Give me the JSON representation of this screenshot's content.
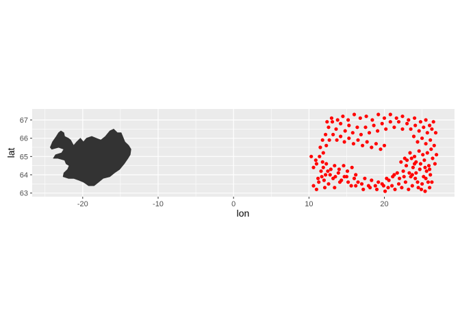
{
  "chart_data": {
    "type": "scatter",
    "title": "",
    "xlabel": "lon",
    "ylabel": "lat",
    "xlim": [
      -26.7,
      29.3
    ],
    "ylim": [
      62.8,
      67.6
    ],
    "x_ticks": [
      -20,
      -10,
      0,
      10,
      20
    ],
    "x_tick_labels": [
      "-20",
      "-10",
      "0",
      "10",
      "20"
    ],
    "y_ticks": [
      63,
      64,
      65,
      66,
      67
    ],
    "y_tick_labels": [
      "63",
      "64",
      "65",
      "66",
      "67"
    ],
    "grid": true,
    "panel_color": "#ebebeb",
    "map_polygon": {
      "name": "Iceland outline",
      "fill": "#333333",
      "outline": [
        [
          -24.3,
          65.5
        ],
        [
          -24.0,
          65.8
        ],
        [
          -23.5,
          66.1
        ],
        [
          -23.2,
          66.3
        ],
        [
          -22.9,
          66.4
        ],
        [
          -22.5,
          66.3
        ],
        [
          -22.4,
          66.1
        ],
        [
          -21.9,
          66.0
        ],
        [
          -21.6,
          65.9
        ],
        [
          -21.2,
          65.6
        ],
        [
          -20.8,
          65.8
        ],
        [
          -20.3,
          66.0
        ],
        [
          -19.9,
          65.8
        ],
        [
          -19.5,
          66.0
        ],
        [
          -18.8,
          66.1
        ],
        [
          -18.2,
          66.0
        ],
        [
          -17.6,
          65.9
        ],
        [
          -17.0,
          66.1
        ],
        [
          -16.4,
          66.4
        ],
        [
          -15.9,
          66.5
        ],
        [
          -15.4,
          66.3
        ],
        [
          -14.9,
          66.3
        ],
        [
          -14.6,
          66.0
        ],
        [
          -14.4,
          65.8
        ],
        [
          -13.9,
          65.6
        ],
        [
          -13.6,
          65.4
        ],
        [
          -13.7,
          65.1
        ],
        [
          -14.0,
          64.9
        ],
        [
          -14.5,
          64.6
        ],
        [
          -15.1,
          64.3
        ],
        [
          -15.8,
          64.1
        ],
        [
          -16.4,
          63.9
        ],
        [
          -17.3,
          63.8
        ],
        [
          -17.9,
          63.6
        ],
        [
          -18.5,
          63.4
        ],
        [
          -19.2,
          63.4
        ],
        [
          -19.9,
          63.6
        ],
        [
          -20.5,
          63.7
        ],
        [
          -21.2,
          63.8
        ],
        [
          -21.9,
          63.8
        ],
        [
          -22.6,
          63.9
        ],
        [
          -22.5,
          64.1
        ],
        [
          -22.0,
          64.3
        ],
        [
          -21.8,
          64.5
        ],
        [
          -22.2,
          64.6
        ],
        [
          -22.4,
          64.8
        ],
        [
          -23.3,
          64.9
        ],
        [
          -23.9,
          64.9
        ],
        [
          -23.6,
          65.1
        ],
        [
          -22.8,
          65.2
        ],
        [
          -22.5,
          65.4
        ],
        [
          -23.2,
          65.5
        ],
        [
          -24.1,
          65.4
        ]
      ]
    },
    "series": [
      {
        "color": "#ff0000",
        "points": [
          [
            10.3,
            65.0
          ],
          [
            10.6,
            64.4
          ],
          [
            10.9,
            64.8
          ],
          [
            11.0,
            64.6
          ],
          [
            11.2,
            63.8
          ],
          [
            10.6,
            63.4
          ],
          [
            11.0,
            63.2
          ],
          [
            11.3,
            63.6
          ],
          [
            11.7,
            63.9
          ],
          [
            12.1,
            63.3
          ],
          [
            11.6,
            64.2
          ],
          [
            11.9,
            64.4
          ],
          [
            12.2,
            64.0
          ],
          [
            12.5,
            64.2
          ],
          [
            12.8,
            64.0
          ],
          [
            13.2,
            63.8
          ],
          [
            13.5,
            63.9
          ],
          [
            13.9,
            64.1
          ],
          [
            14.3,
            63.7
          ],
          [
            14.7,
            63.9
          ],
          [
            15.2,
            63.6
          ],
          [
            15.6,
            63.4
          ],
          [
            16.0,
            63.8
          ],
          [
            16.5,
            63.6
          ],
          [
            17.0,
            63.5
          ],
          [
            17.4,
            63.8
          ],
          [
            17.9,
            63.4
          ],
          [
            18.3,
            63.7
          ],
          [
            18.8,
            63.4
          ],
          [
            19.2,
            63.6
          ],
          [
            19.7,
            63.5
          ],
          [
            20.1,
            63.1
          ],
          [
            20.5,
            63.3
          ],
          [
            21.0,
            63.4
          ],
          [
            21.4,
            63.2
          ],
          [
            21.9,
            63.5
          ],
          [
            22.3,
            63.3
          ],
          [
            22.8,
            63.6
          ],
          [
            23.2,
            63.2
          ],
          [
            23.7,
            63.4
          ],
          [
            24.1,
            63.8
          ],
          [
            24.5,
            63.3
          ],
          [
            25.0,
            63.5
          ],
          [
            25.4,
            63.1
          ],
          [
            25.8,
            63.6
          ],
          [
            26.1,
            64.0
          ],
          [
            25.6,
            64.2
          ],
          [
            25.2,
            63.9
          ],
          [
            24.7,
            64.3
          ],
          [
            24.2,
            64.1
          ],
          [
            23.8,
            64.4
          ],
          [
            23.3,
            64.1
          ],
          [
            22.9,
            64.5
          ],
          [
            22.5,
            64.2
          ],
          [
            22.2,
            64.7
          ],
          [
            23.0,
            64.8
          ],
          [
            23.6,
            64.9
          ],
          [
            24.2,
            64.7
          ],
          [
            24.8,
            64.6
          ],
          [
            25.3,
            64.8
          ],
          [
            25.9,
            64.5
          ],
          [
            26.4,
            64.9
          ],
          [
            26.2,
            65.4
          ],
          [
            25.7,
            65.2
          ],
          [
            25.1,
            65.1
          ],
          [
            24.6,
            65.3
          ],
          [
            24.0,
            65.0
          ],
          [
            23.4,
            65.2
          ],
          [
            26.6,
            65.6
          ],
          [
            26.1,
            65.9
          ],
          [
            25.5,
            65.7
          ],
          [
            25.0,
            66.0
          ],
          [
            24.4,
            65.8
          ],
          [
            23.9,
            66.1
          ],
          [
            26.8,
            66.3
          ],
          [
            26.3,
            66.5
          ],
          [
            25.7,
            66.3
          ],
          [
            25.2,
            66.6
          ],
          [
            24.6,
            66.4
          ],
          [
            24.1,
            66.7
          ],
          [
            23.5,
            66.5
          ],
          [
            23.0,
            66.8
          ],
          [
            22.4,
            66.5
          ],
          [
            21.9,
            66.9
          ],
          [
            21.3,
            66.6
          ],
          [
            20.8,
            66.9
          ],
          [
            20.2,
            66.5
          ],
          [
            19.7,
            66.8
          ],
          [
            19.1,
            66.4
          ],
          [
            18.6,
            66.7
          ],
          [
            18.0,
            66.3
          ],
          [
            17.5,
            66.6
          ],
          [
            16.9,
            66.2
          ],
          [
            16.4,
            66.6
          ],
          [
            15.8,
            66.3
          ],
          [
            15.3,
            66.7
          ],
          [
            14.8,
            66.4
          ],
          [
            14.2,
            66.8
          ],
          [
            13.6,
            66.5
          ],
          [
            13.1,
            66.9
          ],
          [
            12.6,
            66.6
          ],
          [
            12.2,
            66.2
          ],
          [
            11.8,
            65.9
          ],
          [
            11.5,
            65.5
          ],
          [
            11.9,
            65.2
          ],
          [
            12.3,
            65.6
          ],
          [
            12.7,
            65.9
          ],
          [
            13.2,
            66.2
          ],
          [
            13.7,
            65.9
          ],
          [
            14.2,
            66.1
          ],
          [
            14.7,
            65.8
          ],
          [
            15.3,
            66.0
          ],
          [
            15.9,
            65.7
          ],
          [
            16.5,
            65.9
          ],
          [
            17.1,
            65.6
          ],
          [
            17.7,
            65.8
          ],
          [
            18.3,
            65.5
          ],
          [
            18.9,
            65.7
          ],
          [
            19.5,
            65.4
          ],
          [
            20.0,
            65.6
          ],
          [
            11.4,
            65.0
          ],
          [
            11.8,
            64.7
          ],
          [
            12.3,
            64.6
          ],
          [
            12.9,
            64.3
          ],
          [
            13.4,
            64.5
          ],
          [
            14.0,
            64.3
          ],
          [
            14.6,
            64.5
          ],
          [
            15.1,
            64.2
          ],
          [
            15.7,
            64.4
          ],
          [
            16.2,
            64.0
          ],
          [
            12.4,
            66.9
          ],
          [
            13.0,
            67.1
          ],
          [
            13.8,
            67.0
          ],
          [
            14.5,
            67.2
          ],
          [
            15.2,
            67.0
          ],
          [
            16.0,
            67.3
          ],
          [
            16.8,
            67.1
          ],
          [
            17.6,
            67.2
          ],
          [
            18.4,
            67.0
          ],
          [
            19.2,
            67.3
          ],
          [
            20.0,
            67.1
          ],
          [
            20.8,
            67.3
          ],
          [
            21.6,
            67.1
          ],
          [
            22.4,
            67.2
          ],
          [
            23.2,
            67.0
          ],
          [
            24.0,
            67.1
          ],
          [
            24.8,
            66.9
          ],
          [
            25.5,
            67.0
          ],
          [
            26.0,
            66.7
          ],
          [
            26.5,
            66.9
          ],
          [
            20.6,
            63.7
          ],
          [
            21.1,
            63.9
          ],
          [
            21.7,
            64.1
          ],
          [
            22.0,
            63.8
          ],
          [
            24.9,
            63.2
          ],
          [
            26.0,
            63.3
          ],
          [
            26.3,
            63.6
          ],
          [
            25.5,
            63.8
          ],
          [
            24.4,
            63.6
          ],
          [
            23.5,
            63.9
          ],
          [
            26.9,
            65.1
          ],
          [
            26.7,
            64.6
          ],
          [
            26.0,
            64.3
          ],
          [
            25.4,
            64.4
          ],
          [
            12.0,
            63.7
          ],
          [
            12.6,
            63.5
          ],
          [
            13.4,
            63.3
          ],
          [
            14.1,
            63.6
          ],
          [
            15.0,
            63.9
          ],
          [
            16.2,
            63.4
          ],
          [
            17.2,
            63.2
          ],
          [
            18.1,
            63.3
          ],
          [
            19.0,
            63.2
          ],
          [
            19.9,
            63.4
          ],
          [
            20.3,
            63.8
          ],
          [
            21.3,
            64.0
          ],
          [
            22.6,
            63.9
          ],
          [
            24.0,
            64.6
          ],
          [
            23.7,
            64.0
          ],
          [
            22.7,
            64.9
          ]
        ]
      }
    ]
  }
}
